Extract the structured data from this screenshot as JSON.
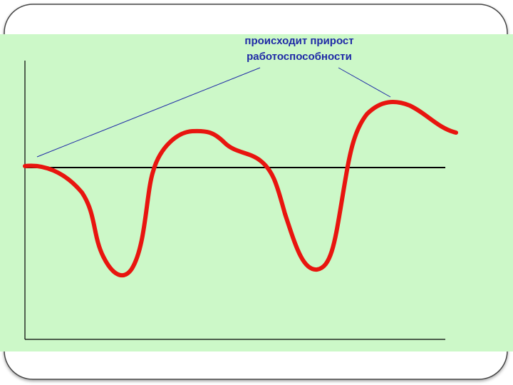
{
  "annotation": {
    "lines": [
      "происходит прирост",
      "работоспособности"
    ]
  }
}
